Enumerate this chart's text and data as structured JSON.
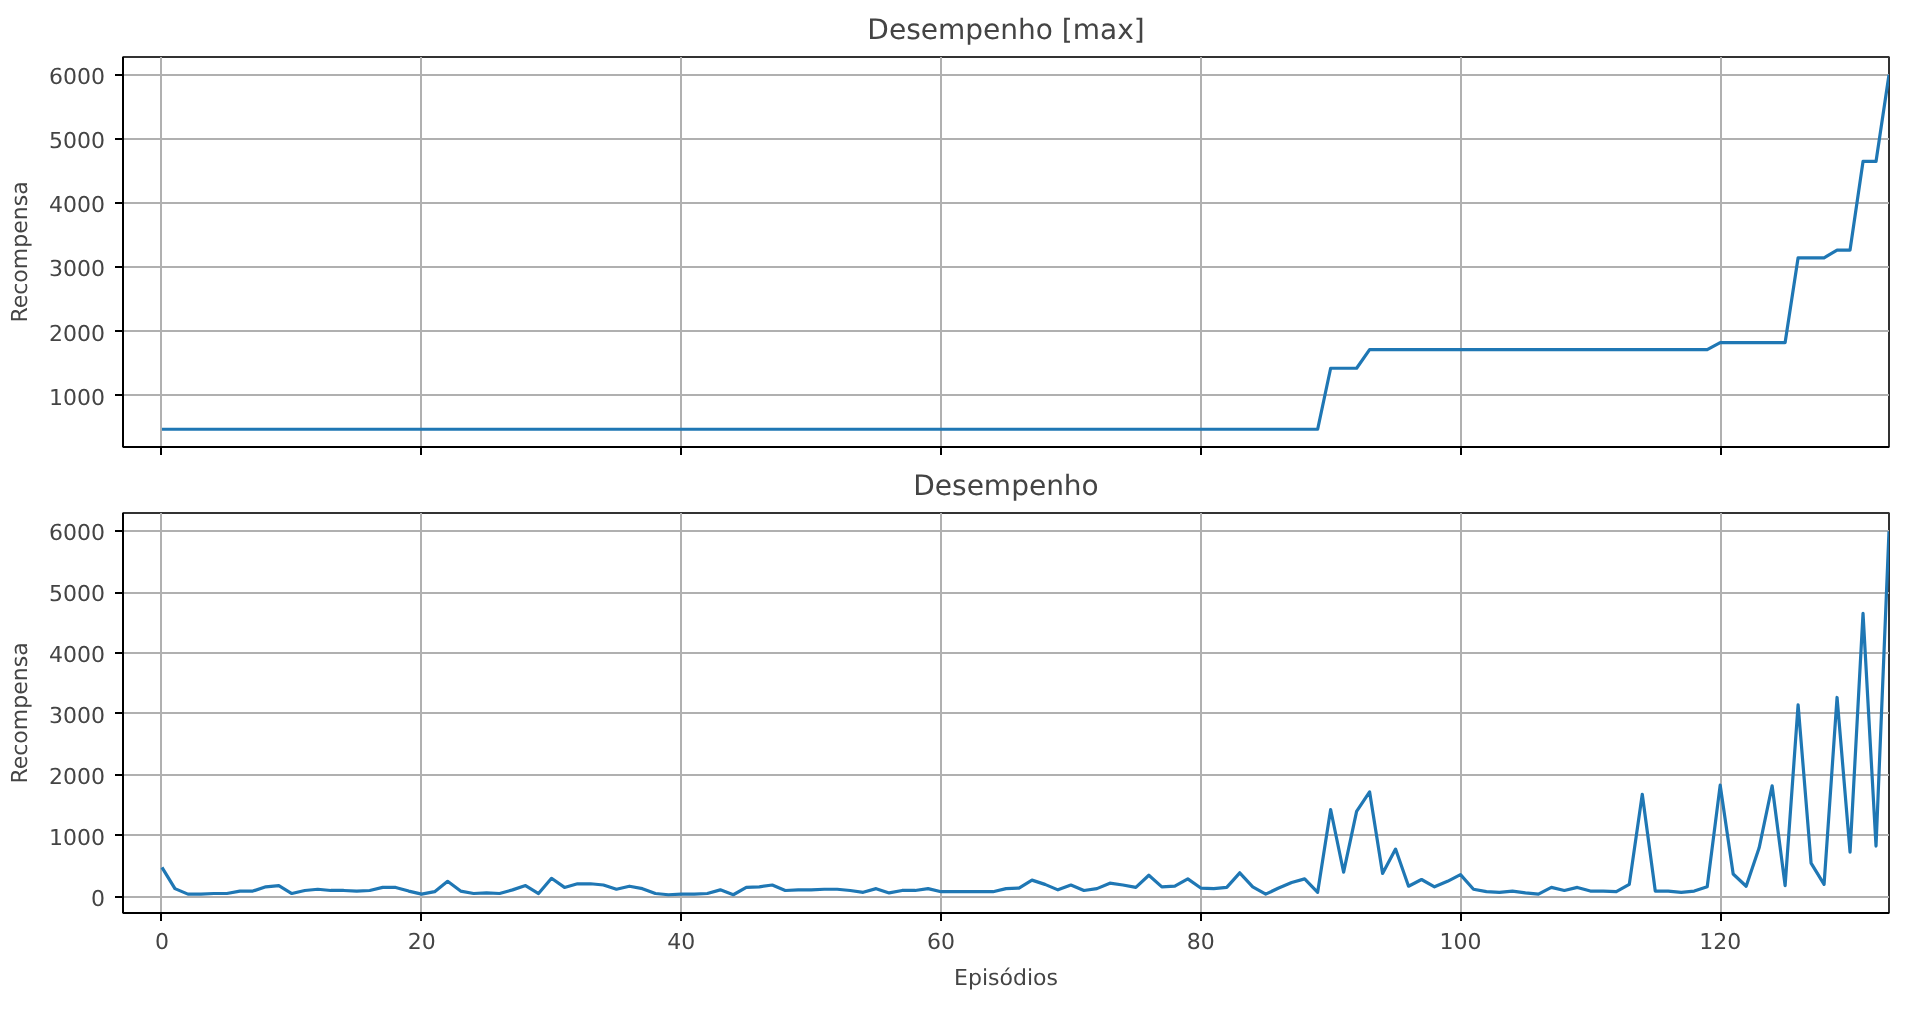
{
  "chart_data": [
    {
      "type": "line",
      "title": "Desempenho [max]",
      "ylabel": "Recompensa",
      "color": "#1f77b4",
      "grid": true,
      "tick_labels": "y",
      "x": [
        0,
        1,
        2,
        3,
        4,
        5,
        6,
        7,
        8,
        9,
        10,
        11,
        12,
        13,
        14,
        15,
        16,
        17,
        18,
        19,
        20,
        21,
        22,
        23,
        24,
        25,
        26,
        27,
        28,
        29,
        30,
        31,
        32,
        33,
        34,
        35,
        36,
        37,
        38,
        39,
        40,
        41,
        42,
        43,
        44,
        45,
        46,
        47,
        48,
        49,
        50,
        51,
        52,
        53,
        54,
        55,
        56,
        57,
        58,
        59,
        60,
        61,
        62,
        63,
        64,
        65,
        66,
        67,
        68,
        69,
        70,
        71,
        72,
        73,
        74,
        75,
        76,
        77,
        78,
        79,
        80,
        81,
        82,
        83,
        84,
        85,
        86,
        87,
        88,
        89,
        90,
        91,
        92,
        93,
        94,
        95,
        96,
        97,
        98,
        99,
        100,
        101,
        102,
        103,
        104,
        105,
        106,
        107,
        108,
        109,
        110,
        111,
        112,
        113,
        114,
        115,
        116,
        117,
        118,
        119,
        120,
        121,
        122,
        123,
        124,
        125,
        126,
        127,
        128,
        129,
        130,
        131,
        132,
        133
      ],
      "values": [
        480,
        480,
        480,
        480,
        480,
        480,
        480,
        480,
        480,
        480,
        480,
        480,
        480,
        480,
        480,
        480,
        480,
        480,
        480,
        480,
        480,
        480,
        480,
        480,
        480,
        480,
        480,
        480,
        480,
        480,
        480,
        480,
        480,
        480,
        480,
        480,
        480,
        480,
        480,
        480,
        480,
        480,
        480,
        480,
        480,
        480,
        480,
        480,
        480,
        480,
        480,
        480,
        480,
        480,
        480,
        480,
        480,
        480,
        480,
        480,
        480,
        480,
        480,
        480,
        480,
        480,
        480,
        480,
        480,
        480,
        480,
        480,
        480,
        480,
        480,
        480,
        480,
        480,
        480,
        480,
        480,
        480,
        480,
        480,
        480,
        480,
        480,
        480,
        480,
        480,
        1430,
        1430,
        1430,
        1720,
        1720,
        1720,
        1720,
        1720,
        1720,
        1720,
        1720,
        1720,
        1720,
        1720,
        1720,
        1720,
        1720,
        1720,
        1720,
        1720,
        1720,
        1720,
        1720,
        1720,
        1720,
        1720,
        1720,
        1720,
        1720,
        1720,
        1830,
        1830,
        1830,
        1830,
        1830,
        1830,
        3150,
        3150,
        3150,
        3270,
        3270,
        4650,
        4650,
        6000
      ],
      "xlim": [
        -3,
        133
      ],
      "ylim": [
        204,
        6276
      ],
      "xticks": [
        0,
        20,
        40,
        60,
        80,
        100,
        120
      ],
      "yticks": [
        1000,
        2000,
        3000,
        4000,
        5000,
        6000
      ]
    },
    {
      "type": "line",
      "title": "Desempenho",
      "xlabel": "Episódios",
      "ylabel": "Recompensa",
      "color": "#1f77b4",
      "grid": true,
      "x": [
        0,
        1,
        2,
        3,
        4,
        5,
        6,
        7,
        8,
        9,
        10,
        11,
        12,
        13,
        14,
        15,
        16,
        17,
        18,
        19,
        20,
        21,
        22,
        23,
        24,
        25,
        26,
        27,
        28,
        29,
        30,
        31,
        32,
        33,
        34,
        35,
        36,
        37,
        38,
        39,
        40,
        41,
        42,
        43,
        44,
        45,
        46,
        47,
        48,
        49,
        50,
        51,
        52,
        53,
        54,
        55,
        56,
        57,
        58,
        59,
        60,
        61,
        62,
        63,
        64,
        65,
        66,
        67,
        68,
        69,
        70,
        71,
        72,
        73,
        74,
        75,
        76,
        77,
        78,
        79,
        80,
        81,
        82,
        83,
        84,
        85,
        86,
        87,
        88,
        89,
        90,
        91,
        92,
        93,
        94,
        95,
        96,
        97,
        98,
        99,
        100,
        101,
        102,
        103,
        104,
        105,
        106,
        107,
        108,
        109,
        110,
        111,
        112,
        113,
        114,
        115,
        116,
        117,
        118,
        119,
        120,
        121,
        122,
        123,
        124,
        125,
        126,
        127,
        128,
        129,
        130,
        131,
        132,
        133
      ],
      "values": [
        480,
        130,
        40,
        40,
        50,
        50,
        90,
        90,
        160,
        180,
        50,
        100,
        120,
        100,
        100,
        90,
        100,
        150,
        150,
        90,
        40,
        80,
        250,
        90,
        50,
        60,
        50,
        110,
        180,
        50,
        300,
        150,
        210,
        210,
        190,
        120,
        170,
        130,
        50,
        30,
        40,
        40,
        50,
        110,
        30,
        150,
        160,
        190,
        100,
        110,
        110,
        120,
        120,
        100,
        70,
        130,
        60,
        100,
        100,
        130,
        80,
        80,
        80,
        80,
        80,
        130,
        140,
        270,
        200,
        110,
        190,
        100,
        130,
        220,
        190,
        150,
        350,
        160,
        170,
        290,
        140,
        130,
        150,
        390,
        160,
        40,
        140,
        230,
        290,
        70,
        1430,
        400,
        1400,
        1720,
        380,
        780,
        170,
        280,
        160,
        250,
        360,
        120,
        80,
        70,
        90,
        60,
        40,
        150,
        100,
        150,
        90,
        90,
        80,
        200,
        1680,
        90,
        90,
        70,
        90,
        160,
        1830,
        370,
        170,
        800,
        1820,
        180,
        3150,
        550,
        200,
        3270,
        730,
        4650,
        830,
        6000
      ],
      "xlim": [
        -3,
        133
      ],
      "ylim": [
        -270,
        6300
      ],
      "xticks": [
        0,
        20,
        40,
        60,
        80,
        100,
        120
      ],
      "yticks": [
        0,
        1000,
        2000,
        3000,
        4000,
        5000,
        6000
      ]
    }
  ]
}
